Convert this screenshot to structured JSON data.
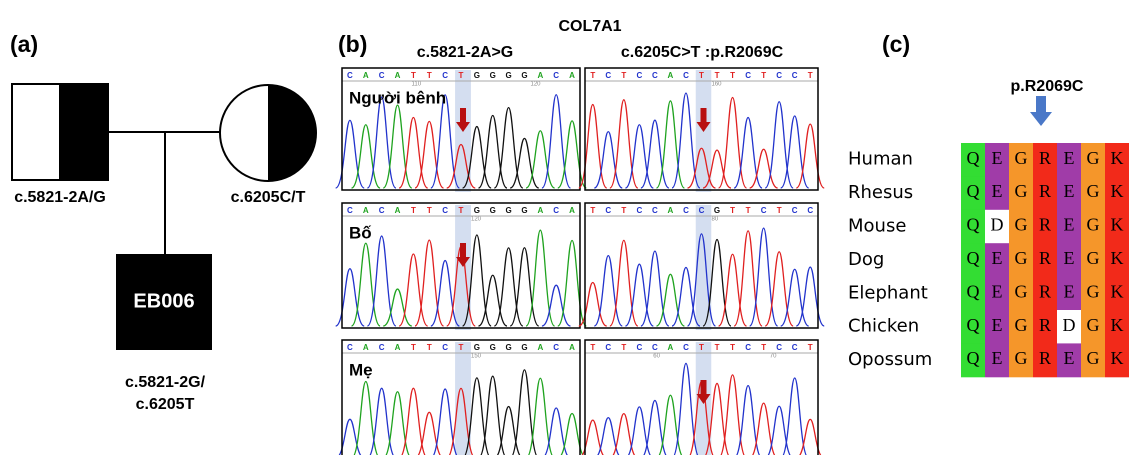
{
  "panel_a": {
    "label": "(a)",
    "father_genotype": "c.5821-2A/G",
    "mother_genotype": "c.6205C/T",
    "proband": "EB006",
    "proband_genotype": [
      "c.5821-2G/",
      "c.6205T"
    ]
  },
  "panel_b": {
    "label": "(b)",
    "gene": "COL7A1",
    "columns": [
      "c.5821-2A>G",
      "c.6205C>T :p.R2069C"
    ],
    "rows": [
      {
        "name": "Người bênh",
        "traces": [
          {
            "bases": [
              "C",
              "A",
              "C",
              "A",
              "T",
              "T",
              "C",
              "T",
              "G",
              "G",
              "G",
              "G",
              "A",
              "C",
              "A"
            ],
            "positions": [
              "110",
              "120"
            ]
          },
          {
            "bases": [
              "T",
              "C",
              "T",
              "C",
              "C",
              "A",
              "C",
              "T",
              "T",
              "T",
              "C",
              "T",
              "C",
              "C",
              "T"
            ],
            "positions": [
              "160"
            ]
          }
        ]
      },
      {
        "name": "Bố",
        "traces": [
          {
            "bases": [
              "C",
              "A",
              "C",
              "A",
              "T",
              "T",
              "C",
              "T",
              "G",
              "G",
              "G",
              "G",
              "A",
              "C",
              "A"
            ],
            "positions": [
              "120"
            ]
          },
          {
            "bases": [
              "T",
              "C",
              "T",
              "C",
              "C",
              "A",
              "C",
              "C",
              "G",
              "T",
              "T",
              "C",
              "T",
              "C",
              "C"
            ],
            "positions": [
              "80"
            ]
          }
        ]
      },
      {
        "name": "Mẹ",
        "traces": [
          {
            "bases": [
              "C",
              "A",
              "C",
              "A",
              "T",
              "T",
              "C",
              "T",
              "G",
              "G",
              "G",
              "G",
              "A",
              "C",
              "A"
            ],
            "positions": [
              "150"
            ]
          },
          {
            "bases": [
              "T",
              "C",
              "T",
              "C",
              "C",
              "A",
              "C",
              "T",
              "T",
              "T",
              "C",
              "T",
              "C",
              "C",
              "T"
            ],
            "positions": [
              "60",
              "70"
            ]
          }
        ]
      }
    ]
  },
  "panel_c": {
    "label": "(c)",
    "variant": "p.R2069C",
    "species": [
      {
        "name": "Human",
        "residues": [
          "Q",
          "E",
          "G",
          "R",
          "E",
          "G",
          "K"
        ]
      },
      {
        "name": "Rhesus",
        "residues": [
          "Q",
          "E",
          "G",
          "R",
          "E",
          "G",
          "K"
        ]
      },
      {
        "name": "Mouse",
        "residues": [
          "Q",
          "D",
          "G",
          "R",
          "E",
          "G",
          "K"
        ]
      },
      {
        "name": "Dog",
        "residues": [
          "Q",
          "E",
          "G",
          "R",
          "E",
          "G",
          "K"
        ]
      },
      {
        "name": "Elephant",
        "residues": [
          "Q",
          "E",
          "G",
          "R",
          "E",
          "G",
          "K"
        ]
      },
      {
        "name": "Chicken",
        "residues": [
          "Q",
          "E",
          "G",
          "R",
          "D",
          "G",
          "K"
        ]
      },
      {
        "name": "Opossum",
        "residues": [
          "Q",
          "E",
          "G",
          "R",
          "E",
          "G",
          "K"
        ]
      }
    ]
  }
}
